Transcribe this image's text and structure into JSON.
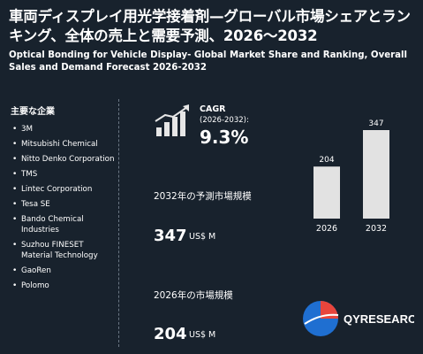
{
  "header": {
    "title_jp": "車両ディスプレイ用光学接着剤—グローバル市場シェアとランキング、全体の売上と需要予測、2026〜2032",
    "title_en": "Optical Bonding for Vehicle Display- Global Market Share and Ranking, Overall Sales and Demand Forecast 2026-2032"
  },
  "companies": {
    "label": "主要な企業",
    "items": [
      "3M",
      "Mitsubishi Chemical",
      "Nitto Denko Corporation",
      "TMS",
      "Lintec Corporation",
      "Tesa SE",
      "Bando Chemical Industries",
      "Suzhou FINESET Material Technology",
      "GaoRen",
      "Polomo"
    ]
  },
  "cagr": {
    "label": "CAGR",
    "period": "(2026-2032):",
    "value": "9.3%"
  },
  "market_2032": {
    "label": "2032年の予測市場規模",
    "value": "347",
    "unit": "US$ M"
  },
  "market_2026": {
    "label": "2026年の市場規模",
    "value": "204",
    "unit": "US$ M"
  },
  "chart_data": {
    "type": "bar",
    "categories": [
      "2026",
      "2032"
    ],
    "values": [
      204,
      347
    ],
    "ylim": [
      0,
      347
    ],
    "grid": false,
    "bar_color": "#e2e2e2"
  },
  "logo": {
    "text": "QYRESEARCH",
    "accent_color": "#e8453c",
    "brand_color": "#1f6fd1"
  },
  "colors": {
    "background": "#18222d",
    "text": "#ffffff"
  },
  "icons": {
    "growth": "bar-growth-arrow-icon",
    "bullet": "bullet-icon"
  }
}
